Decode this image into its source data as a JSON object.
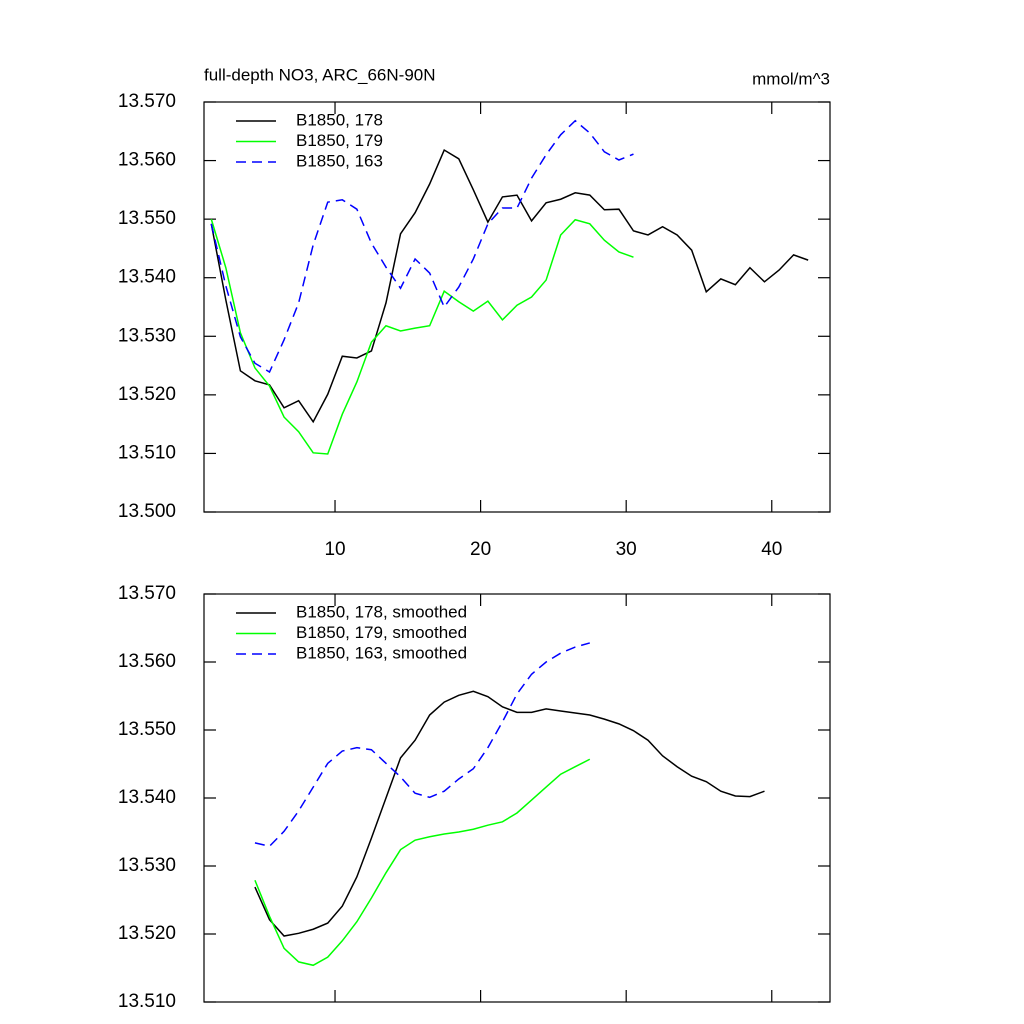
{
  "chart_data": [
    {
      "type": "line",
      "title": "full-depth NO3, ARC_66N-90N",
      "units": "mmol/m^3",
      "x": [
        1.5,
        2.5,
        3.5,
        4.5,
        5.5,
        6.5,
        7.5,
        8.5,
        9.5,
        10.5,
        11.5,
        12.5,
        13.5,
        14.5,
        15.5,
        16.5,
        17.5,
        18.5,
        19.5,
        20.5,
        21.5,
        22.5,
        23.5,
        24.5,
        25.5,
        26.5,
        27.5,
        28.5,
        29.5,
        30.5,
        31.5,
        32.5,
        33.5,
        34.5,
        35.5,
        36.5,
        37.5,
        38.5,
        39.5,
        40.5,
        41.5,
        42.5
      ],
      "series": [
        {
          "name": "B1850, 178",
          "color": "#000000",
          "line_style": "solid",
          "values": [
            13.5492,
            13.5362,
            13.5241,
            13.5224,
            13.5217,
            13.5178,
            13.519,
            13.5154,
            13.5201,
            13.5266,
            13.5263,
            13.5275,
            13.5357,
            13.5475,
            13.5511,
            13.556,
            13.5618,
            13.5603,
            13.555,
            13.5495,
            13.5538,
            13.5541,
            13.5497,
            13.5528,
            13.5534,
            13.5545,
            13.5541,
            13.5516,
            13.5517,
            13.548,
            13.5473,
            13.5487,
            13.5473,
            13.5447,
            13.5376,
            13.5398,
            13.5388,
            13.5417,
            13.5393,
            13.5413,
            13.5439,
            13.543
          ]
        },
        {
          "name": "B1850, 179",
          "color": "#00ff00",
          "line_style": "solid",
          "values": [
            13.55,
            13.5417,
            13.5306,
            13.5246,
            13.5215,
            13.5162,
            13.5137,
            13.5101,
            13.5099,
            13.5167,
            13.5222,
            13.529,
            13.5318,
            13.5309,
            13.5314,
            13.5318,
            13.5377,
            13.5359,
            13.5343,
            13.536,
            13.5328,
            13.5353,
            13.5367,
            13.5396,
            13.5473,
            13.5499,
            13.5492,
            13.5464,
            13.5444,
            13.5435,
            null,
            null,
            null,
            null,
            null,
            null,
            null,
            null,
            null,
            null,
            null,
            null
          ]
        },
        {
          "name": "B1850, 163",
          "color": "#0000ff",
          "line_style": "dashed",
          "values": [
            13.5492,
            13.5386,
            13.5299,
            13.5254,
            13.5239,
            13.5294,
            13.5357,
            13.5456,
            13.5529,
            13.5533,
            13.5517,
            13.5459,
            13.5418,
            13.5382,
            13.5432,
            13.5408,
            13.535,
            13.5384,
            13.5432,
            13.5492,
            13.5519,
            13.5519,
            13.557,
            13.561,
            13.5644,
            13.5668,
            13.5647,
            13.5615,
            13.5601,
            13.5611,
            null,
            null,
            null,
            null,
            null,
            null,
            null,
            null,
            null,
            null,
            null,
            null
          ]
        }
      ],
      "xlim": [
        1,
        44
      ],
      "xticks": [
        10,
        20,
        30,
        40
      ],
      "ylim": [
        13.5,
        13.57
      ],
      "yticks": [
        {
          "value": 13.5,
          "label": "13.500"
        },
        {
          "value": 13.51,
          "label": "13.510"
        },
        {
          "value": 13.52,
          "label": "13.520"
        },
        {
          "value": 13.53,
          "label": "13.530"
        },
        {
          "value": 13.54,
          "label": "13.540"
        },
        {
          "value": 13.55,
          "label": "13.550"
        },
        {
          "value": 13.56,
          "label": "13.560"
        },
        {
          "value": 13.57,
          "label": "13.570"
        }
      ],
      "legend": "upper left"
    },
    {
      "type": "line",
      "x": [
        4.5,
        5.5,
        6.5,
        7.5,
        8.5,
        9.5,
        10.5,
        11.5,
        12.5,
        13.5,
        14.5,
        15.5,
        16.5,
        17.5,
        18.5,
        19.5,
        20.5,
        21.5,
        22.5,
        23.5,
        24.5,
        25.5,
        26.5,
        27.5,
        28.5,
        29.5,
        30.5,
        31.5,
        32.5,
        33.5,
        34.5,
        35.5,
        36.5,
        37.5,
        38.5,
        39.5
      ],
      "series": [
        {
          "name": "B1850, 178, smoothed",
          "color": "#000000",
          "line_style": "solid",
          "values": [
            13.5269,
            13.5221,
            13.5197,
            13.5201,
            13.5207,
            13.5216,
            13.5241,
            13.5284,
            13.5341,
            13.54,
            13.5459,
            13.5485,
            13.5522,
            13.5541,
            13.5551,
            13.5557,
            13.5549,
            13.5534,
            13.5526,
            13.5526,
            13.5531,
            13.5528,
            13.5525,
            13.5522,
            13.5516,
            13.5509,
            13.5499,
            13.5485,
            13.5462,
            13.5446,
            13.5432,
            13.5424,
            13.541,
            13.5403,
            13.5402,
            13.541
          ]
        },
        {
          "name": "B1850, 179, smoothed",
          "color": "#00ff00",
          "line_style": "solid",
          "values": [
            13.5279,
            13.5226,
            13.5179,
            13.5159,
            13.5154,
            13.5166,
            13.519,
            13.5218,
            13.5253,
            13.529,
            13.5324,
            13.5338,
            13.5343,
            13.5347,
            13.535,
            13.5354,
            13.536,
            13.5365,
            13.5378,
            13.5397,
            13.5416,
            13.5435,
            13.5446,
            13.5457,
            null,
            null,
            null,
            null,
            null,
            null,
            null,
            null,
            null,
            null,
            null,
            null
          ]
        },
        {
          "name": "B1850, 163, smoothed",
          "color": "#0000ff",
          "line_style": "dashed",
          "values": [
            13.5334,
            13.5329,
            13.5351,
            13.5381,
            13.5416,
            13.5451,
            13.5469,
            13.5474,
            13.5471,
            13.5451,
            13.5431,
            13.5407,
            13.5401,
            13.541,
            13.5428,
            13.5443,
            13.5474,
            13.5512,
            13.5553,
            13.5582,
            13.56,
            13.5613,
            13.5622,
            13.5628,
            null,
            null,
            null,
            null,
            null,
            null,
            null,
            null,
            null,
            null,
            null,
            null
          ]
        }
      ],
      "xlim": [
        1,
        44
      ],
      "xticks": [
        10,
        20,
        30,
        40
      ],
      "ylim": [
        13.51,
        13.57
      ],
      "yticks": [
        {
          "value": 13.51,
          "label": "13.510"
        },
        {
          "value": 13.52,
          "label": "13.520"
        },
        {
          "value": 13.53,
          "label": "13.530"
        },
        {
          "value": 13.54,
          "label": "13.540"
        },
        {
          "value": 13.55,
          "label": "13.550"
        },
        {
          "value": 13.56,
          "label": "13.560"
        },
        {
          "value": 13.57,
          "label": "13.570"
        }
      ],
      "legend": "upper left"
    }
  ]
}
